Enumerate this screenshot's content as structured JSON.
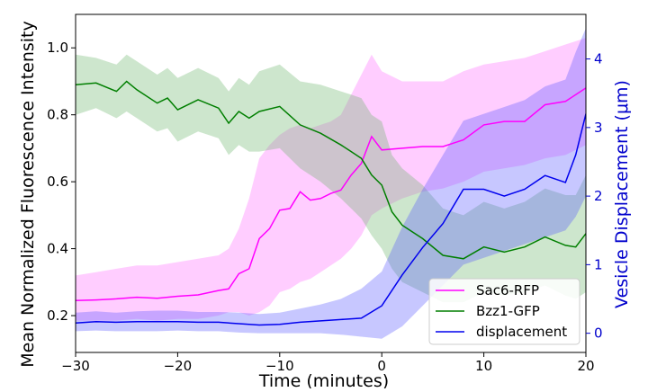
{
  "chart_data": {
    "type": "line",
    "xlabel": "Time (minutes)",
    "ylabel_left": "Mean Normalized Fluorescence Intensity",
    "ylabel_right": "Vesicle Displacement (μm)",
    "xlim": [
      -30,
      20
    ],
    "ylim_left": [
      0.09,
      1.1
    ],
    "ylim_right": [
      -0.28,
      4.65
    ],
    "x_ticks": [
      -30,
      -20,
      -10,
      0,
      10,
      20
    ],
    "y_left_ticks": [
      "0.2",
      "0.4",
      "0.6",
      "0.8",
      "1.0"
    ],
    "y_left_tick_values": [
      0.2,
      0.4,
      0.6,
      0.8,
      1.0
    ],
    "y_right_ticks": [
      "0",
      "1",
      "2",
      "3",
      "4"
    ],
    "y_right_tick_values": [
      0,
      1,
      2,
      3,
      4
    ],
    "right_axis_color": "#0000cc",
    "grid": false,
    "legend_position": "lower-right",
    "series": [
      {
        "name": "Sac6-RFP",
        "axis": "left",
        "color": "#ff00ff",
        "band_color": "#ff66ff",
        "x": [
          -30,
          -28,
          -26,
          -24,
          -22,
          -20,
          -18,
          -16,
          -15,
          -14,
          -13,
          -12,
          -11,
          -10,
          -9,
          -8,
          -7,
          -6,
          -5,
          -4,
          -3,
          -2,
          -1,
          0,
          2,
          4,
          6,
          8,
          10,
          12,
          14,
          16,
          18,
          20
        ],
        "y": [
          0.245,
          0.247,
          0.25,
          0.255,
          0.252,
          0.258,
          0.262,
          0.275,
          0.28,
          0.325,
          0.34,
          0.43,
          0.46,
          0.515,
          0.52,
          0.57,
          0.545,
          0.55,
          0.565,
          0.575,
          0.62,
          0.655,
          0.735,
          0.695,
          0.7,
          0.705,
          0.705,
          0.725,
          0.77,
          0.78,
          0.78,
          0.83,
          0.84,
          0.88
        ],
        "lower": [
          0.185,
          0.185,
          0.185,
          0.19,
          0.185,
          0.19,
          0.19,
          0.2,
          0.21,
          0.21,
          0.2,
          0.21,
          0.23,
          0.27,
          0.28,
          0.3,
          0.31,
          0.33,
          0.35,
          0.37,
          0.4,
          0.44,
          0.5,
          0.52,
          0.55,
          0.57,
          0.58,
          0.6,
          0.63,
          0.64,
          0.65,
          0.67,
          0.68,
          0.71
        ],
        "upper": [
          0.32,
          0.33,
          0.34,
          0.35,
          0.35,
          0.36,
          0.37,
          0.38,
          0.4,
          0.46,
          0.55,
          0.67,
          0.71,
          0.74,
          0.76,
          0.77,
          0.76,
          0.77,
          0.78,
          0.8,
          0.86,
          0.92,
          0.98,
          0.93,
          0.9,
          0.9,
          0.9,
          0.93,
          0.95,
          0.96,
          0.97,
          0.99,
          1.01,
          1.03
        ]
      },
      {
        "name": "Bzz1-GFP",
        "axis": "left",
        "color": "#007f00",
        "band_color": "#66b266",
        "x": [
          -30,
          -28,
          -26,
          -25,
          -24,
          -22,
          -21,
          -20,
          -18,
          -16,
          -15,
          -14,
          -13,
          -12,
          -10,
          -8,
          -6,
          -4,
          -3,
          -2,
          -1,
          0,
          1,
          2,
          4,
          6,
          8,
          10,
          12,
          14,
          16,
          18,
          19,
          20
        ],
        "y": [
          0.89,
          0.895,
          0.87,
          0.9,
          0.875,
          0.835,
          0.85,
          0.815,
          0.845,
          0.82,
          0.775,
          0.81,
          0.79,
          0.81,
          0.825,
          0.77,
          0.745,
          0.71,
          0.69,
          0.67,
          0.62,
          0.59,
          0.51,
          0.47,
          0.43,
          0.38,
          0.37,
          0.405,
          0.39,
          0.405,
          0.435,
          0.41,
          0.405,
          0.445
        ],
        "lower": [
          0.8,
          0.82,
          0.79,
          0.81,
          0.79,
          0.75,
          0.76,
          0.72,
          0.75,
          0.73,
          0.68,
          0.71,
          0.69,
          0.69,
          0.7,
          0.64,
          0.6,
          0.55,
          0.52,
          0.49,
          0.44,
          0.4,
          0.34,
          0.3,
          0.27,
          0.24,
          0.24,
          0.27,
          0.26,
          0.27,
          0.29,
          0.26,
          0.25,
          0.27
        ],
        "upper": [
          0.98,
          0.97,
          0.95,
          0.98,
          0.96,
          0.92,
          0.94,
          0.91,
          0.94,
          0.91,
          0.87,
          0.91,
          0.89,
          0.93,
          0.95,
          0.9,
          0.89,
          0.87,
          0.86,
          0.85,
          0.8,
          0.78,
          0.68,
          0.64,
          0.59,
          0.52,
          0.5,
          0.54,
          0.52,
          0.54,
          0.58,
          0.56,
          0.56,
          0.62
        ]
      },
      {
        "name": "displacement",
        "axis": "right",
        "color": "#0000ee",
        "band_color": "#5555ff",
        "x": [
          -30,
          -28,
          -26,
          -24,
          -22,
          -20,
          -18,
          -16,
          -14,
          -12,
          -10,
          -8,
          -6,
          -4,
          -2,
          0,
          2,
          4,
          6,
          8,
          10,
          12,
          14,
          16,
          18,
          19,
          20
        ],
        "y": [
          0.15,
          0.17,
          0.16,
          0.17,
          0.17,
          0.17,
          0.16,
          0.16,
          0.14,
          0.12,
          0.13,
          0.16,
          0.18,
          0.2,
          0.22,
          0.4,
          0.85,
          1.25,
          1.6,
          2.1,
          2.1,
          2.0,
          2.1,
          2.3,
          2.2,
          2.6,
          3.2
        ],
        "lower": [
          0.03,
          0.04,
          0.03,
          0.03,
          0.03,
          0.04,
          0.03,
          0.03,
          0.01,
          0.0,
          0.0,
          0.0,
          0.0,
          -0.02,
          -0.05,
          -0.08,
          0.1,
          0.4,
          0.7,
          1.0,
          1.1,
          1.2,
          1.3,
          1.4,
          1.5,
          1.7,
          2.0
        ],
        "upper": [
          0.3,
          0.32,
          0.3,
          0.32,
          0.33,
          0.33,
          0.31,
          0.31,
          0.3,
          0.28,
          0.3,
          0.36,
          0.42,
          0.5,
          0.65,
          0.9,
          1.55,
          2.1,
          2.6,
          3.1,
          3.2,
          3.3,
          3.4,
          3.6,
          3.7,
          4.1,
          4.45
        ]
      }
    ]
  }
}
